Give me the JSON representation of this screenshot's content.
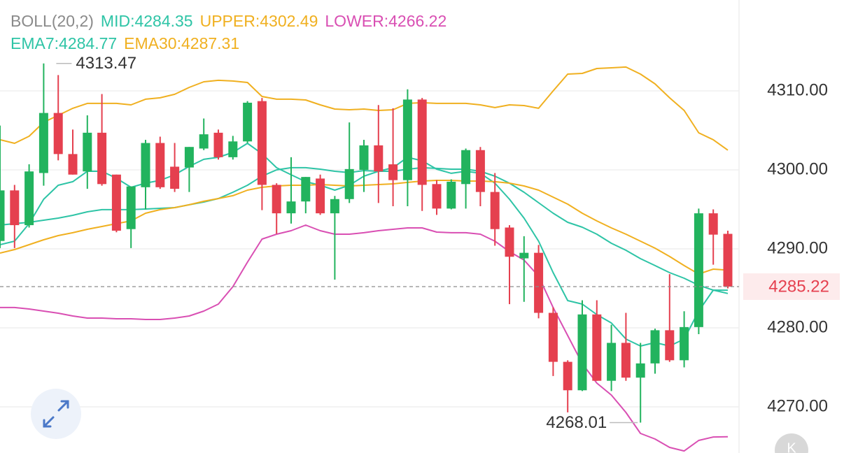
{
  "chart_data": {
    "type": "candlestick",
    "indicator_title": "BOLL(20,2)",
    "up_color": "#22b35e",
    "down_color": "#e5404f",
    "open": [
      4291.0,
      4297.4,
      4293.0,
      4299.6,
      4307.2,
      4302.0,
      4299.8,
      4304.7,
      4299.4,
      4292.5,
      4297.8,
      4303.4,
      4300.4,
      4300.3,
      4302.7,
      4304.7,
      4301.6,
      4303.6,
      4308.7,
      4298.1,
      4294.5,
      4296.0,
      4298.9,
      4294.5,
      4296.3,
      4300.0,
      4303.1,
      4300.7,
      4298.7,
      4308.9,
      4298.2,
      4295.1,
      4298.2,
      4302.5,
      4297.2,
      4292.7,
      4288.8,
      4289.5,
      4281.9,
      4275.7,
      4272.1,
      4281.7,
      4273.3,
      4278.1,
      4273.7,
      4275.5,
      4279.7,
      4275.9,
      4280.1,
      4294.5,
      4291.9
    ],
    "high": [
      4305.6,
      4298.1,
      4300.7,
      4313.47,
      4312.0,
      4305.1,
      4306.9,
      4309.6,
      4299.4,
      4297.9,
      4303.8,
      4304.2,
      4303.4,
      4302.9,
      4306.5,
      4305.1,
      4304.3,
      4308.7,
      4309.1,
      4298.3,
      4301.6,
      4299.1,
      4299.4,
      4296.7,
      4306.0,
      4303.8,
      4308.2,
      4307.8,
      4310.2,
      4309.1,
      4298.7,
      4298.8,
      4302.7,
      4302.9,
      4299.6,
      4293.0,
      4291.6,
      4290.5,
      4282.6,
      4275.9,
      4283.5,
      4283.5,
      4280.4,
      4281.9,
      4278.1,
      4279.9,
      4286.8,
      4282.1,
      4295.1,
      4295.0,
      4292.3
    ],
    "low": [
      4290.1,
      4290.1,
      4292.7,
      4298.0,
      4301.2,
      4299.4,
      4297.6,
      4298.0,
      4292.1,
      4290.1,
      4295.0,
      4297.6,
      4297.2,
      4297.2,
      4302.5,
      4301.3,
      4301.3,
      4303.4,
      4294.9,
      4291.9,
      4293.2,
      4294.5,
      4294.3,
      4286.1,
      4295.8,
      4297.2,
      4295.8,
      4295.4,
      4295.4,
      4294.8,
      4294.3,
      4295.0,
      4295.1,
      4295.4,
      4290.4,
      4283.0,
      4283.3,
      4281.2,
      4273.9,
      4269.3,
      4272.0,
      4273.3,
      4272.0,
      4273.3,
      4268.01,
      4274.2,
      4275.7,
      4275.0,
      4279.2,
      4288.0,
      4285.0
    ],
    "close": [
      4297.4,
      4293.0,
      4299.8,
      4307.2,
      4302.0,
      4299.4,
      4304.7,
      4298.2,
      4292.3,
      4297.9,
      4303.4,
      4297.8,
      4297.6,
      4302.9,
      4304.5,
      4301.6,
      4303.6,
      4308.5,
      4298.1,
      4294.5,
      4296.0,
      4299.1,
      4294.5,
      4296.3,
      4300.1,
      4303.1,
      4299.8,
      4298.7,
      4308.9,
      4298.1,
      4295.1,
      4298.5,
      4302.5,
      4297.2,
      4292.5,
      4289.0,
      4289.5,
      4281.9,
      4275.7,
      4272.1,
      4281.7,
      4273.3,
      4278.1,
      4273.7,
      4275.5,
      4279.7,
      4275.9,
      4280.1,
      4294.5,
      4291.8,
      4285.22
    ],
    "series": [
      {
        "name": "MID:4284.35",
        "color": "#2ec4a6",
        "values": [
          4293.01,
          4293.19,
          4293.36,
          4293.63,
          4293.89,
          4294.25,
          4294.69,
          4294.96,
          4294.96,
          4294.96,
          4295.04,
          4295.13,
          4295.22,
          4295.58,
          4295.93,
          4296.37,
          4297.17,
          4298.05,
          4299.2,
          4300.0,
          4300.27,
          4300.27,
          4300.09,
          4299.82,
          4299.65,
          4299.91,
          4299.82,
          4299.82,
          4300.09,
          4300.27,
          4300.18,
          4300.09,
          4300.09,
          4299.82,
          4299.2,
          4298.32,
          4297.17,
          4295.84,
          4294.51,
          4293.36,
          4292.74,
          4291.86,
          4290.71,
          4289.82,
          4288.76,
          4287.88,
          4286.99,
          4286.28,
          4285.4,
          4284.78,
          4284.35
        ]
      },
      {
        "name": "UPPER:4302.49",
        "color": "#f0b020",
        "values": [
          4303.81,
          4303.36,
          4304.25,
          4306.02,
          4306.9,
          4307.79,
          4308.41,
          4308.41,
          4308.41,
          4308.23,
          4308.94,
          4309.12,
          4309.56,
          4310.44,
          4311.15,
          4311.33,
          4311.24,
          4311.06,
          4309.29,
          4308.94,
          4308.94,
          4308.85,
          4308.23,
          4307.7,
          4307.61,
          4307.7,
          4307.52,
          4307.61,
          4308.41,
          4308.5,
          4308.41,
          4308.41,
          4308.41,
          4308.23,
          4307.88,
          4308.23,
          4308.14,
          4307.79,
          4310.0,
          4312.12,
          4312.21,
          4312.83,
          4312.92,
          4313.01,
          4312.12,
          4310.88,
          4309.12,
          4307.52,
          4304.69,
          4303.81,
          4302.49
        ]
      },
      {
        "name": "LOWER:4266.22",
        "color": "#d94fb3",
        "values": [
          4282.57,
          4282.57,
          4282.39,
          4282.12,
          4281.86,
          4281.5,
          4281.24,
          4281.24,
          4281.15,
          4281.15,
          4281.06,
          4281.06,
          4281.24,
          4281.5,
          4282.12,
          4283.01,
          4285.22,
          4288.32,
          4291.24,
          4291.86,
          4292.3,
          4293.01,
          4292.3,
          4291.86,
          4291.86,
          4292.04,
          4292.3,
          4292.48,
          4292.65,
          4292.65,
          4292.12,
          4292.04,
          4292.04,
          4291.86,
          4290.97,
          4289.65,
          4288.58,
          4286.55,
          4282.57,
          4279.03,
          4275.49,
          4273.01,
          4271.5,
          4269.29,
          4266.64,
          4265.93,
          4264.87,
          4264.42,
          4265.75,
          4266.19,
          4266.22
        ]
      },
      {
        "name": "EMA7:4284.77",
        "color": "#2ec4a6",
        "values": [
          4290.53,
          4290.97,
          4293.19,
          4296.28,
          4298.05,
          4298.5,
          4299.82,
          4299.82,
          4298.94,
          4297.79,
          4298.32,
          4298.67,
          4299.38,
          4300.44,
          4301.33,
          4301.59,
          4302.21,
          4303.36,
          4302.04,
          4300.27,
          4299.38,
          4298.5,
          4298.05,
          4297.43,
          4298.05,
          4299.2,
          4299.82,
          4300.27,
          4301.59,
          4301.15,
          4300.09,
          4299.56,
          4299.82,
          4299.56,
          4298.32,
          4296.28,
          4293.89,
          4290.97,
          4286.99,
          4283.45,
          4283.01,
          4281.68,
          4280.62,
          4278.58,
          4277.7,
          4278.14,
          4277.7,
          4278.58,
          4282.12,
          4284.78,
          4284.77
        ]
      },
      {
        "name": "EMA30:4287.31",
        "color": "#f0b020",
        "values": [
          4289.47,
          4289.91,
          4290.53,
          4291.15,
          4291.68,
          4292.04,
          4292.48,
          4292.83,
          4293.19,
          4293.54,
          4294.51,
          4294.96,
          4295.22,
          4295.58,
          4296.02,
          4296.37,
          4296.73,
          4297.43,
          4297.79,
          4297.96,
          4298.05,
          4298.05,
          4298.14,
          4298.05,
          4297.96,
          4298.05,
          4298.14,
          4298.23,
          4298.41,
          4298.58,
          4298.67,
          4298.67,
          4298.58,
          4298.58,
          4298.5,
          4298.32,
          4297.96,
          4297.43,
          4296.55,
          4295.66,
          4294.51,
          4293.54,
          4292.65,
          4291.86,
          4290.97,
          4290.09,
          4289.03,
          4287.88,
          4286.81,
          4287.43,
          4287.31
        ]
      }
    ],
    "current_price": 4285.22,
    "ylim": [
      4264.16,
      4321.5
    ],
    "yticks": [
      {
        "value": 4270,
        "label": "4270.00"
      },
      {
        "value": 4280,
        "label": "4280.00"
      },
      {
        "value": 4290,
        "label": "4290.00"
      },
      {
        "value": 4300,
        "label": "4300.00"
      },
      {
        "value": 4310,
        "label": "4310.00"
      }
    ],
    "grid": true
  },
  "controls": {
    "kline_button": "K"
  }
}
